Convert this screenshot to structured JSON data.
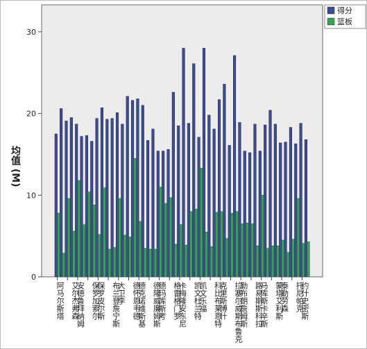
{
  "chart_data": {
    "type": "bar",
    "y_label": "均值 (M)",
    "categories": [
      "阿马尔斯塔",
      null,
      "艾尔杰弗森",
      null,
      "安德鲁拜纳姆",
      null,
      "保罗加索尔",
      null,
      "保罗皮尔斯",
      null,
      "布兰登詹宁斯",
      null,
      "大卫李",
      null,
      "德怀恩韦德",
      null,
      "德克诺维斯基",
      null,
      "德隆威廉姆斯",
      null,
      "德玛库斯考",
      null,
      "格雷格门罗",
      null,
      "卡梅隆安东尼",
      null,
      "凯文杜兰特",
      null,
      "凯文乐福",
      null,
      "科比布莱恩特",
      null,
      "克里斯博什",
      null,
      "拉塞尔威斯布鲁克",
      null,
      "勒布朗詹姆斯",
      null,
      "路易斯斯科拉",
      null,
      "马库斯卡辛斯",
      null,
      "蒙塔艾利斯",
      null,
      "泰勒劳森",
      null,
      "托尼帕克",
      null,
      "约什史密斯",
      null
    ],
    "series": [
      {
        "name": "得分",
        "color": "#3d4d8f",
        "values": [
          17.5,
          20.6,
          19.1,
          19.5,
          18.7,
          17.2,
          17.3,
          16.6,
          19.4,
          20.7,
          19.3,
          19.4,
          20.1,
          18.7,
          22.1,
          21.6,
          21.8,
          21.0,
          16.7,
          18.1,
          15.4,
          15.4,
          15.6,
          22.6,
          18.5,
          28.0,
          18.8,
          26.1,
          17.1,
          28.0,
          19.8,
          18.1,
          21.7,
          23.6,
          16.1,
          27.1,
          18.9,
          15.4,
          15.2,
          18.7,
          15.4,
          18.6,
          20.4,
          18.7,
          16.4,
          16.5,
          18.3,
          16.3,
          18.8,
          16.8
        ]
      },
      {
        "name": "篮板",
        "color": "#3aa05a",
        "values": [
          7.8,
          2.9,
          9.6,
          5.6,
          11.8,
          6.4,
          10.4,
          8.8,
          5.2,
          10.9,
          3.4,
          3.6,
          9.6,
          5.1,
          4.9,
          14.5,
          6.8,
          3.5,
          3.4,
          3.4,
          11.0,
          9.0,
          9.7,
          4.0,
          6.4,
          3.9,
          8.0,
          8.3,
          13.3,
          5.5,
          3.7,
          7.9,
          8.0,
          4.7,
          7.8,
          8.0,
          6.5,
          6.6,
          6.5,
          3.8,
          10.0,
          3.5,
          3.8,
          3.8,
          4.5,
          3.0,
          4.6,
          9.6,
          4.1,
          4.3
        ]
      }
    ],
    "ylim": [
      0,
      33.3
    ],
    "yticks": [
      0,
      10,
      20,
      30
    ],
    "legend": "upper right"
  }
}
